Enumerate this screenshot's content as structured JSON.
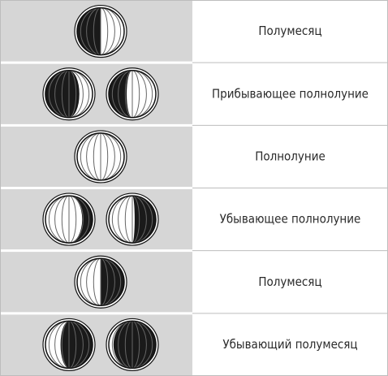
{
  "table": {
    "rows": [
      {
        "label": "Полумесяц"
      },
      {
        "label": "Прибывающее полнолуние"
      },
      {
        "label": "Полнолуние"
      },
      {
        "label": "Убывающее полнолуние"
      },
      {
        "label": "Полумесяц"
      },
      {
        "label": "Убывающий полумесяц"
      }
    ]
  }
}
